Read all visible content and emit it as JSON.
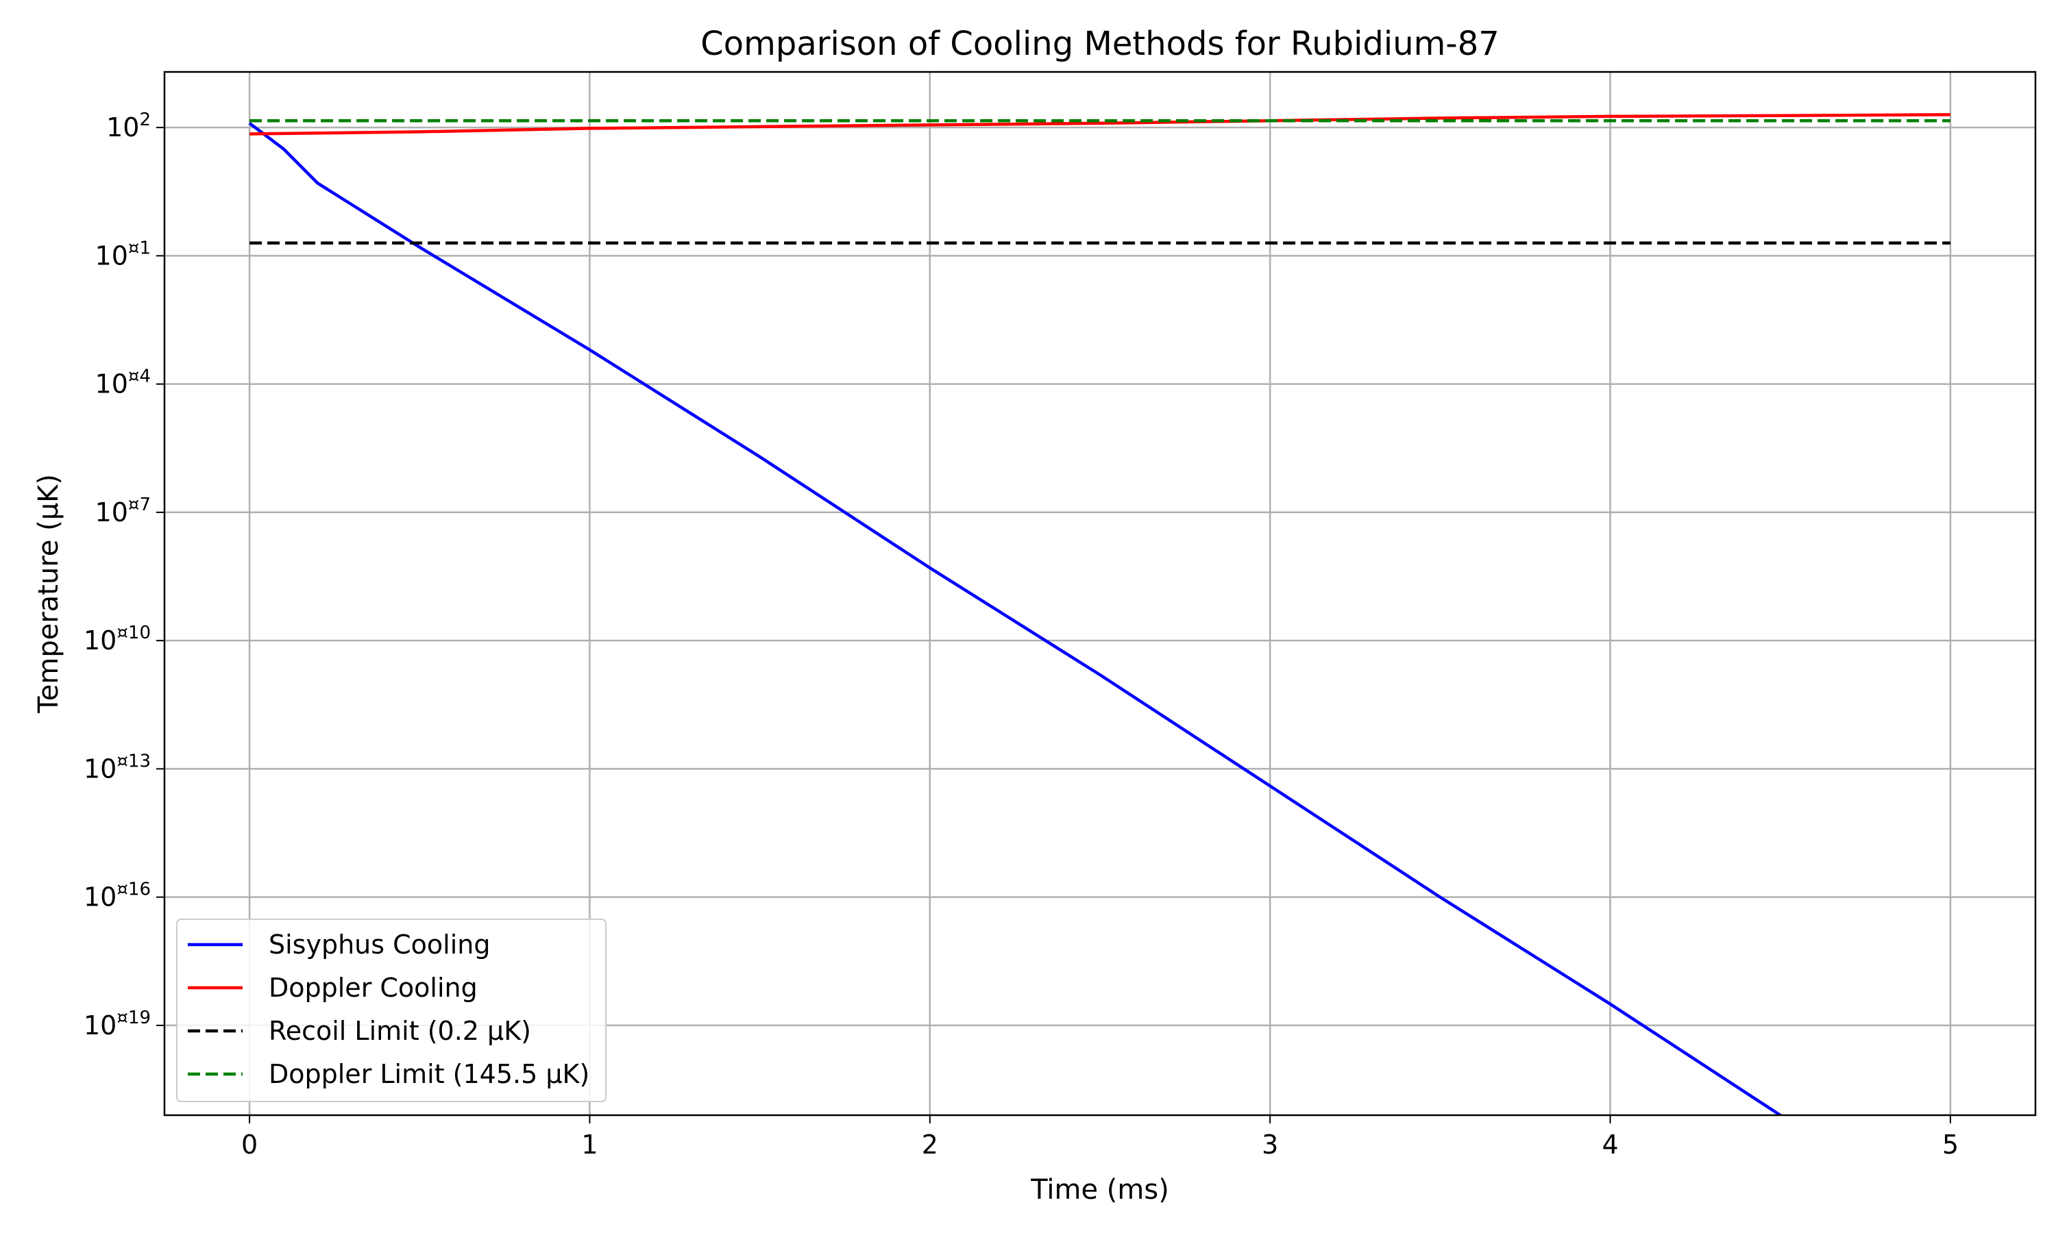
{
  "chart_data": {
    "type": "line",
    "title": "Comparison of Cooling Methods for Rubidium-87",
    "xlabel": "Time (ms)",
    "ylabel": "Temperature (μK)",
    "x_scale": "linear",
    "y_scale": "log",
    "xlim": [
      -0.25,
      5.25
    ],
    "ylim_log10": [
      -21.1,
      3.3
    ],
    "x_ticks": [
      {
        "value": 0,
        "label": "0"
      },
      {
        "value": 1,
        "label": "1"
      },
      {
        "value": 2,
        "label": "2"
      },
      {
        "value": 3,
        "label": "3"
      },
      {
        "value": 4,
        "label": "4"
      },
      {
        "value": 5,
        "label": "5"
      }
    ],
    "y_ticks": [
      {
        "log10": 2,
        "base": "10",
        "exp": "2"
      },
      {
        "log10": -1,
        "base": "10",
        "exp": "¤1"
      },
      {
        "log10": -4,
        "base": "10",
        "exp": "¤4"
      },
      {
        "log10": -7,
        "base": "10",
        "exp": "¤7"
      },
      {
        "log10": -10,
        "base": "10",
        "exp": "¤10"
      },
      {
        "log10": -13,
        "base": "10",
        "exp": "¤13"
      },
      {
        "log10": -16,
        "base": "10",
        "exp": "¤16"
      },
      {
        "log10": -19,
        "base": "10",
        "exp": "¤19"
      }
    ],
    "grid": true,
    "legend_position": "lower-left",
    "series": [
      {
        "name": "Sisyphus Cooling",
        "color": "#0000ff",
        "style": "solid",
        "x": [
          0,
          0.1,
          0.2,
          0.3,
          0.4,
          0.5,
          1,
          1.5,
          2,
          2.5,
          3,
          3.5,
          4,
          4.5,
          5
        ],
        "log10_y": [
          2.1,
          1.5,
          0.7,
          0.2,
          -0.3,
          -0.8,
          -3.2,
          -5.7,
          -8.3,
          -10.8,
          -13.4,
          -16.0,
          -18.5,
          -21.1,
          -23.6
        ]
      },
      {
        "name": "Doppler Cooling",
        "color": "#ff0000",
        "style": "solid",
        "x": [
          0,
          0.5,
          1,
          1.5,
          2,
          2.5,
          3,
          3.5,
          4,
          4.5,
          5
        ],
        "log10_y": [
          1.85,
          1.9,
          1.98,
          2.02,
          2.06,
          2.1,
          2.16,
          2.22,
          2.26,
          2.28,
          2.3
        ]
      },
      {
        "name": "Recoil Limit (0.2 μK)",
        "color": "#000000",
        "style": "dashed",
        "x": [
          0,
          5
        ],
        "log10_y": [
          -0.7,
          -0.7
        ]
      },
      {
        "name": "Doppler Limit (145.5 μK)",
        "color": "#008000",
        "style": "dashed",
        "x": [
          0,
          5
        ],
        "log10_y": [
          2.16,
          2.16
        ]
      }
    ]
  }
}
